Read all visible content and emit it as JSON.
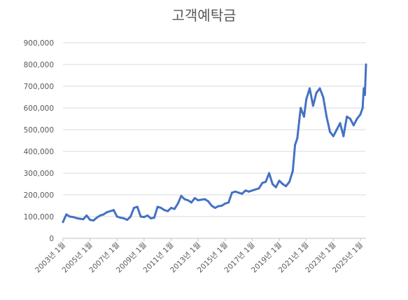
{
  "chart_data": {
    "type": "line",
    "title": "고객예탁금",
    "xlabel": "",
    "ylabel": "",
    "ylim": [
      0,
      900000
    ],
    "y_ticks": [
      0,
      100000,
      200000,
      300000,
      400000,
      500000,
      600000,
      700000,
      800000,
      900000
    ],
    "y_tick_labels": [
      "0",
      "100,000",
      "200,000",
      "300,000",
      "400,000",
      "500,000",
      "600,000",
      "700,000",
      "800,000",
      "900,000"
    ],
    "x_tick_labels": [
      "2003년 1월",
      "2005년 1월",
      "2007년 1월",
      "2009년 1월",
      "2011년 1월",
      "2013년 1월",
      "2015년 1월",
      "2017년 1월",
      "2019년 1월",
      "2021년 1월",
      "2023년 1월",
      "2025년 1월"
    ],
    "x_range": [
      "2003-01",
      "2025-06"
    ],
    "grid": true,
    "legend": "none",
    "series": [
      {
        "color": "#4472c4",
        "x": [
          "2003-01",
          "2003-04",
          "2003-07",
          "2003-10",
          "2004-01",
          "2004-04",
          "2004-07",
          "2004-10",
          "2005-01",
          "2005-04",
          "2005-07",
          "2005-10",
          "2006-01",
          "2006-04",
          "2006-07",
          "2006-10",
          "2007-01",
          "2007-04",
          "2007-07",
          "2007-10",
          "2008-01",
          "2008-04",
          "2008-07",
          "2008-10",
          "2009-01",
          "2009-04",
          "2009-07",
          "2009-10",
          "2010-01",
          "2010-04",
          "2010-07",
          "2010-10",
          "2011-01",
          "2011-04",
          "2011-07",
          "2011-10",
          "2012-01",
          "2012-04",
          "2012-07",
          "2012-10",
          "2013-01",
          "2013-04",
          "2013-07",
          "2013-10",
          "2014-01",
          "2014-04",
          "2014-07",
          "2014-10",
          "2015-01",
          "2015-04",
          "2015-07",
          "2015-10",
          "2016-01",
          "2016-04",
          "2016-07",
          "2016-10",
          "2017-01",
          "2017-04",
          "2017-07",
          "2017-10",
          "2018-01",
          "2018-04",
          "2018-07",
          "2018-10",
          "2019-01",
          "2019-04",
          "2019-07",
          "2019-10",
          "2020-01",
          "2020-03",
          "2020-05",
          "2020-08",
          "2020-11",
          "2021-01",
          "2021-04",
          "2021-07",
          "2021-10",
          "2022-01",
          "2022-04",
          "2022-07",
          "2022-10",
          "2023-01",
          "2023-04",
          "2023-07",
          "2023-10",
          "2024-01",
          "2024-04",
          "2024-07",
          "2024-10",
          "2025-01",
          "2025-03",
          "2025-04",
          "2025-05",
          "2025-06"
        ],
        "values": [
          75000,
          110000,
          100000,
          98000,
          93000,
          90000,
          88000,
          105000,
          85000,
          82000,
          95000,
          105000,
          110000,
          120000,
          125000,
          130000,
          100000,
          95000,
          92000,
          85000,
          100000,
          140000,
          145000,
          100000,
          98000,
          105000,
          92000,
          95000,
          145000,
          140000,
          130000,
          125000,
          140000,
          135000,
          160000,
          195000,
          180000,
          175000,
          165000,
          185000,
          175000,
          178000,
          180000,
          170000,
          150000,
          140000,
          148000,
          150000,
          160000,
          165000,
          210000,
          215000,
          210000,
          205000,
          220000,
          215000,
          220000,
          225000,
          230000,
          255000,
          260000,
          300000,
          250000,
          235000,
          265000,
          250000,
          240000,
          260000,
          310000,
          430000,
          460000,
          600000,
          560000,
          640000,
          690000,
          610000,
          670000,
          690000,
          650000,
          560000,
          490000,
          470000,
          500000,
          530000,
          470000,
          560000,
          550000,
          520000,
          550000,
          570000,
          600000,
          690000,
          660000,
          800000
        ]
      }
    ]
  }
}
